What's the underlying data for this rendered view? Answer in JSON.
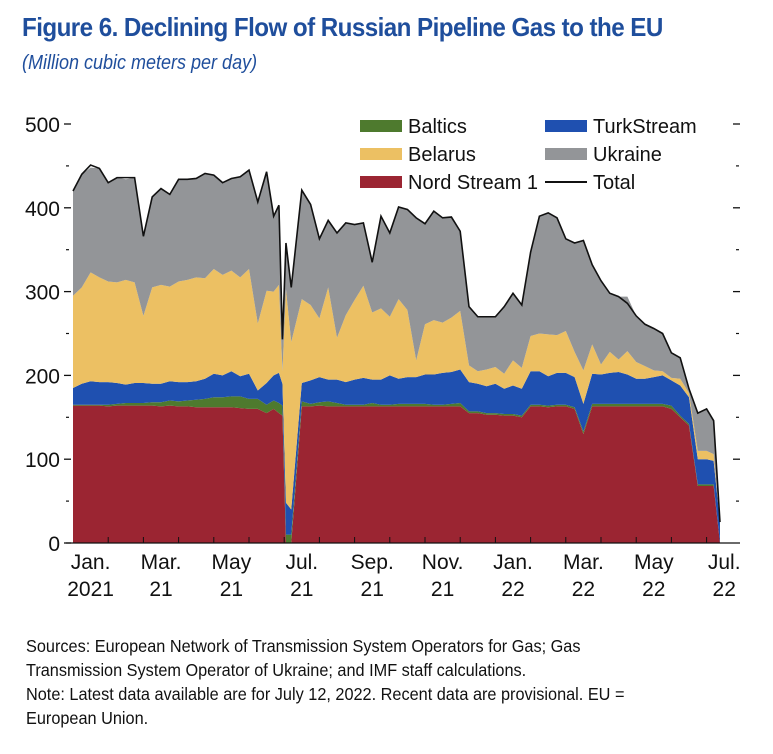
{
  "header": {
    "title": "Figure 6.  Declining Flow of Russian Pipeline Gas to the EU",
    "subtitle": "(Million cubic meters per day)"
  },
  "footer": {
    "lines": [
      "Sources: European Network of Transmission System Operators for Gas; Gas",
      "Transmission System Operator of Ukraine; and IMF staff calculations.",
      "Note: Latest data available are for July 12, 2022. Recent data are provisional. EU =",
      "European Union."
    ]
  },
  "chart_data": {
    "type": "area",
    "stacked": true,
    "title": "Figure 6.  Declining Flow of Russian Pipeline Gas to the EU",
    "subtitle": "(Million cubic meters per day)",
    "xlabel": "",
    "ylabel": "",
    "ylim": [
      0,
      500
    ],
    "yticks": [
      0,
      100,
      200,
      300,
      400,
      500
    ],
    "ytick_labels": [
      "0",
      "100",
      "200",
      "300",
      "400",
      "500"
    ],
    "xlim": [
      "2021-01-01",
      "2022-07-12"
    ],
    "xtick_labels": [
      {
        "line1": "Jan.",
        "line2": "2021",
        "month": 0
      },
      {
        "line1": "Mar.",
        "line2": "21",
        "month": 2
      },
      {
        "line1": "May",
        "line2": "21",
        "month": 4
      },
      {
        "line1": "Jul.",
        "line2": "21",
        "month": 6
      },
      {
        "line1": "Sep.",
        "line2": "21",
        "month": 8
      },
      {
        "line1": "Nov.",
        "line2": "21",
        "month": 10
      },
      {
        "line1": "Jan.",
        "line2": "22",
        "month": 12
      },
      {
        "line1": "Mar.",
        "line2": "22",
        "month": 14
      },
      {
        "line1": "May",
        "line2": "22",
        "month": 16
      },
      {
        "line1": "Jul.",
        "line2": "22",
        "month": 18
      }
    ],
    "grid": false,
    "legend": {
      "placement": "top-right",
      "entries": [
        {
          "name": "Baltics",
          "color": "#4e7a2e",
          "kind": "area"
        },
        {
          "name": "TurkStream",
          "color": "#1f50b0",
          "kind": "area"
        },
        {
          "name": "Belarus",
          "color": "#ecc063",
          "kind": "area"
        },
        {
          "name": "Ukraine",
          "color": "#939598",
          "kind": "area"
        },
        {
          "name": "Nord Stream 1",
          "color": "#9b2532",
          "kind": "area"
        },
        {
          "name": "Total",
          "color": "#111111",
          "kind": "line"
        }
      ]
    },
    "series_order_bottom_to_top": [
      "Nord Stream 1",
      "Baltics",
      "TurkStream",
      "Belarus",
      "Ukraine"
    ],
    "x_month_offset": [
      0.0,
      0.25,
      0.5,
      0.75,
      1.0,
      1.25,
      1.5,
      1.75,
      2.0,
      2.25,
      2.5,
      2.75,
      3.0,
      3.25,
      3.5,
      3.75,
      4.0,
      4.25,
      4.5,
      4.75,
      5.0,
      5.25,
      5.5,
      5.7,
      5.85,
      5.95,
      6.05,
      6.2,
      6.5,
      6.75,
      7.0,
      7.25,
      7.5,
      7.75,
      8.0,
      8.25,
      8.5,
      8.75,
      9.0,
      9.25,
      9.5,
      9.75,
      10.0,
      10.25,
      10.5,
      10.75,
      11.0,
      11.25,
      11.5,
      11.75,
      12.0,
      12.25,
      12.5,
      12.75,
      13.0,
      13.25,
      13.5,
      13.75,
      14.0,
      14.25,
      14.5,
      14.75,
      15.0,
      15.25,
      15.5,
      15.75,
      16.0,
      16.25,
      16.5,
      16.75,
      17.0,
      17.25,
      17.5,
      17.75,
      18.0,
      18.2,
      18.38
    ],
    "series": [
      {
        "name": "Nord Stream 1",
        "color": "#9b2532",
        "values": [
          164,
          164,
          164,
          164,
          163,
          164,
          164,
          164,
          164,
          164,
          163,
          164,
          163,
          163,
          162,
          162,
          162,
          162,
          162,
          161,
          160,
          160,
          155,
          160,
          155,
          152,
          0,
          0,
          163,
          163,
          164,
          163,
          163,
          163,
          163,
          163,
          163,
          163,
          163,
          163,
          163,
          163,
          163,
          163,
          163,
          163,
          163,
          155,
          155,
          153,
          153,
          152,
          152,
          150,
          163,
          163,
          162,
          163,
          163,
          160,
          130,
          163,
          163,
          163,
          163,
          163,
          163,
          163,
          163,
          163,
          160,
          150,
          140,
          68,
          68,
          68,
          0
        ]
      },
      {
        "name": "Baltics",
        "color": "#4e7a2e",
        "values": [
          1,
          1,
          1,
          1,
          2,
          2,
          3,
          3,
          3,
          4,
          5,
          6,
          6,
          7,
          9,
          10,
          12,
          12,
          13,
          14,
          12,
          12,
          10,
          10,
          12,
          12,
          10,
          10,
          6,
          3,
          4,
          6,
          4,
          2,
          2,
          2,
          4,
          2,
          2,
          3,
          3,
          3,
          3,
          2,
          2,
          3,
          4,
          2,
          2,
          2,
          2,
          2,
          2,
          2,
          2,
          2,
          2,
          2,
          2,
          2,
          3,
          3,
          3,
          3,
          3,
          3,
          3,
          3,
          3,
          3,
          4,
          2,
          2,
          2,
          2,
          2,
          0
        ]
      },
      {
        "name": "TurkStream",
        "color": "#1f50b0",
        "values": [
          20,
          25,
          28,
          27,
          27,
          25,
          22,
          24,
          24,
          22,
          22,
          23,
          23,
          22,
          22,
          24,
          28,
          26,
          30,
          24,
          30,
          10,
          26,
          30,
          36,
          26,
          38,
          30,
          22,
          28,
          30,
          26,
          28,
          27,
          30,
          32,
          28,
          30,
          35,
          30,
          32,
          32,
          35,
          36,
          38,
          38,
          40,
          35,
          33,
          32,
          35,
          30,
          34,
          32,
          40,
          40,
          35,
          38,
          38,
          36,
          33,
          36,
          35,
          37,
          38,
          35,
          30,
          30,
          32,
          34,
          30,
          36,
          32,
          30,
          30,
          28,
          25
        ]
      },
      {
        "name": "Belarus",
        "color": "#ecc063",
        "values": [
          110,
          115,
          130,
          125,
          120,
          120,
          125,
          120,
          80,
          115,
          118,
          113,
          120,
          122,
          124,
          120,
          125,
          120,
          120,
          118,
          125,
          80,
          110,
          100,
          105,
          15,
          255,
          200,
          100,
          90,
          70,
          110,
          50,
          80,
          95,
          110,
          80,
          85,
          70,
          95,
          80,
          20,
          60,
          65,
          60,
          65,
          70,
          20,
          15,
          20,
          20,
          18,
          30,
          25,
          42,
          45,
          50,
          45,
          50,
          30,
          40,
          35,
          12,
          25,
          15,
          28,
          20,
          15,
          8,
          5,
          3,
          8,
          5,
          10,
          10,
          8,
          0
        ]
      },
      {
        "name": "Ukraine",
        "color": "#939598",
        "values": [
          125,
          135,
          125,
          130,
          118,
          125,
          120,
          125,
          95,
          108,
          115,
          110,
          122,
          120,
          118,
          125,
          112,
          110,
          110,
          120,
          118,
          145,
          140,
          90,
          95,
          38,
          55,
          65,
          130,
          120,
          95,
          80,
          125,
          110,
          90,
          75,
          60,
          110,
          100,
          110,
          120,
          170,
          120,
          130,
          125,
          120,
          95,
          70,
          65,
          63,
          60,
          80,
          80,
          75,
          100,
          140,
          145,
          140,
          110,
          130,
          155,
          95,
          100,
          70,
          75,
          65,
          55,
          50,
          50,
          45,
          30,
          25,
          5,
          45,
          50,
          40,
          0
        ]
      },
      {
        "name": "Total",
        "color": "#111111",
        "kind": "line",
        "values": [
          420,
          440,
          451,
          447,
          430,
          436,
          436,
          436,
          366,
          413,
          423,
          416,
          434,
          434,
          435,
          441,
          439,
          430,
          435,
          437,
          445,
          407,
          443,
          390,
          403,
          243,
          358,
          305,
          421,
          404,
          363,
          385,
          370,
          382,
          380,
          382,
          335,
          390,
          370,
          401,
          398,
          388,
          381,
          396,
          388,
          389,
          372,
          282,
          270,
          270,
          270,
          282,
          298,
          284,
          347,
          390,
          394,
          388,
          363,
          358,
          361,
          332,
          313,
          298,
          294,
          286,
          271,
          261,
          256,
          250,
          227,
          221,
          184,
          155,
          160,
          146,
          25
        ]
      }
    ]
  }
}
